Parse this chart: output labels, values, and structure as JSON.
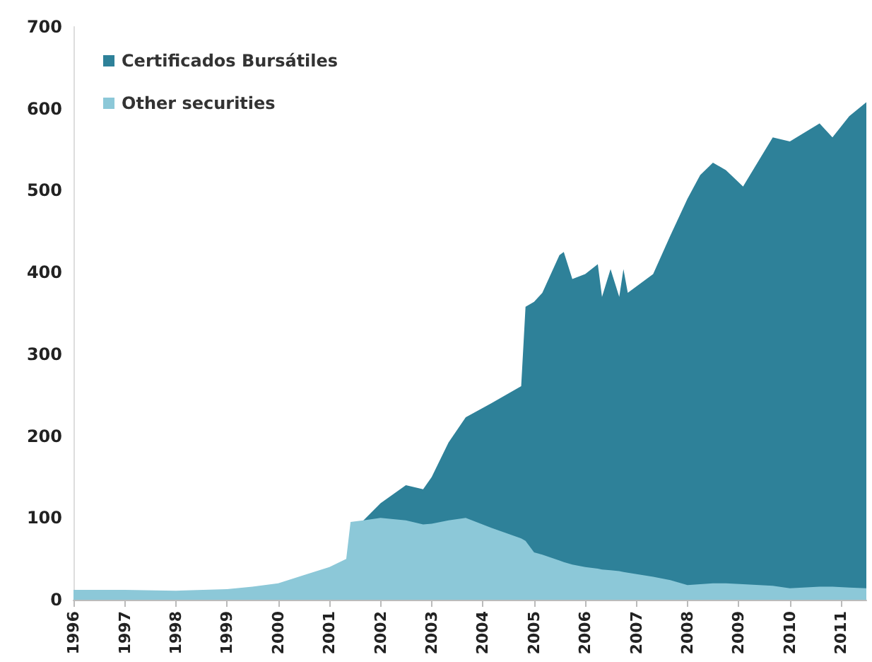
{
  "chart_data": {
    "type": "area",
    "stacked": true,
    "legend": "top left",
    "grid": false,
    "x": [
      "1996-01",
      "1997-01",
      "1998-01",
      "1999-01",
      "1999-07",
      "2000-01",
      "2000-07",
      "2001-01",
      "2001-05",
      "2001-06",
      "2001-09",
      "2002-01",
      "2002-07",
      "2002-11",
      "2003-01",
      "2003-05",
      "2003-09",
      "2004-03",
      "2004-10",
      "2004-11",
      "2005-01",
      "2005-03",
      "2005-07",
      "2005-08",
      "2005-10",
      "2006-01",
      "2006-04",
      "2006-05",
      "2006-07",
      "2006-09",
      "2006-10",
      "2006-11",
      "2007-05",
      "2007-09",
      "2008-01",
      "2008-04",
      "2008-07",
      "2008-10",
      "2009-02",
      "2009-09",
      "2010-01",
      "2010-08",
      "2010-11",
      "2011-03",
      "2011-07"
    ],
    "series": [
      {
        "name": "Other securities",
        "color": "#8cc8d8",
        "values": [
          12,
          12,
          11,
          13,
          16,
          20,
          30,
          40,
          50,
          95,
          97,
          100,
          97,
          92,
          93,
          97,
          100,
          88,
          75,
          72,
          58,
          55,
          48,
          46,
          43,
          40,
          38,
          37,
          36,
          35,
          34,
          33,
          28,
          24,
          18,
          19,
          20,
          20,
          19,
          17,
          14,
          16,
          16,
          15,
          14
        ]
      },
      {
        "name": "Certificados Bursátiles",
        "color": "#2e8199",
        "values": [
          null,
          null,
          null,
          null,
          null,
          null,
          null,
          null,
          null,
          null,
          0,
          18,
          43,
          43,
          57,
          95,
          123,
          152,
          186,
          286,
          306,
          320,
          373,
          379,
          349,
          358,
          372,
          333,
          368,
          335,
          370,
          342,
          370,
          421,
          472,
          500,
          514,
          505,
          486,
          548,
          546,
          566,
          549,
          576,
          594
        ]
      }
    ],
    "xlim": [
      "1996-01",
      "2011-07"
    ],
    "xticks": [
      {
        "value": "1996",
        "label": "1996"
      },
      {
        "value": "1997",
        "label": "1997"
      },
      {
        "value": "1998",
        "label": "1998"
      },
      {
        "value": "1999",
        "label": "1999"
      },
      {
        "value": "2000",
        "label": "2000"
      },
      {
        "value": "2001",
        "label": "2001"
      },
      {
        "value": "2002",
        "label": "2002"
      },
      {
        "value": "2003",
        "label": "2003"
      },
      {
        "value": "2004",
        "label": "2004"
      },
      {
        "value": "2005",
        "label": "2005"
      },
      {
        "value": "2006",
        "label": "2006"
      },
      {
        "value": "2007",
        "label": "2007"
      },
      {
        "value": "2008",
        "label": "2008"
      },
      {
        "value": "2009",
        "label": "2009"
      },
      {
        "value": "2010",
        "label": "2010"
      },
      {
        "value": "2011",
        "label": "2011"
      }
    ],
    "ylim": [
      0,
      700
    ],
    "yticks": [
      0,
      100,
      200,
      300,
      400,
      500,
      600,
      700
    ]
  }
}
